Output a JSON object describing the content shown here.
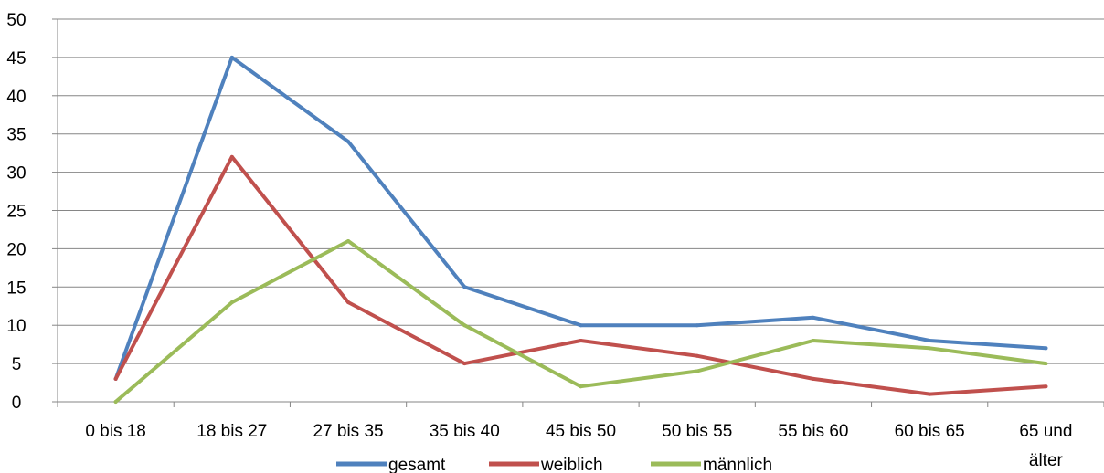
{
  "chart_data": {
    "type": "line",
    "categories": [
      [
        "0 bis 18"
      ],
      [
        "18 bis 27"
      ],
      [
        "27 bis 35"
      ],
      [
        "35 bis 40"
      ],
      [
        "45 bis 50"
      ],
      [
        "50 bis 55"
      ],
      [
        "55 bis 60"
      ],
      [
        "60 bis 65"
      ],
      [
        "65 und",
        "älter"
      ]
    ],
    "ylim": [
      0,
      50
    ],
    "yticks": [
      0,
      5,
      10,
      15,
      20,
      25,
      30,
      35,
      40,
      45,
      50
    ],
    "grid": "horizontal",
    "legend": "bottom",
    "series": [
      {
        "name": "gesamt",
        "color": "#4F81BD",
        "values": [
          3,
          45,
          34,
          15,
          10,
          10,
          11,
          8,
          7
        ]
      },
      {
        "name": "weiblich",
        "color": "#C0504D",
        "values": [
          3,
          32,
          13,
          5,
          8,
          6,
          3,
          1,
          2
        ]
      },
      {
        "name": "männlich",
        "color": "#9BBB59",
        "values": [
          0,
          13,
          21,
          10,
          2,
          4,
          8,
          7,
          5
        ]
      }
    ],
    "title": "",
    "xlabel": "",
    "ylabel": ""
  }
}
